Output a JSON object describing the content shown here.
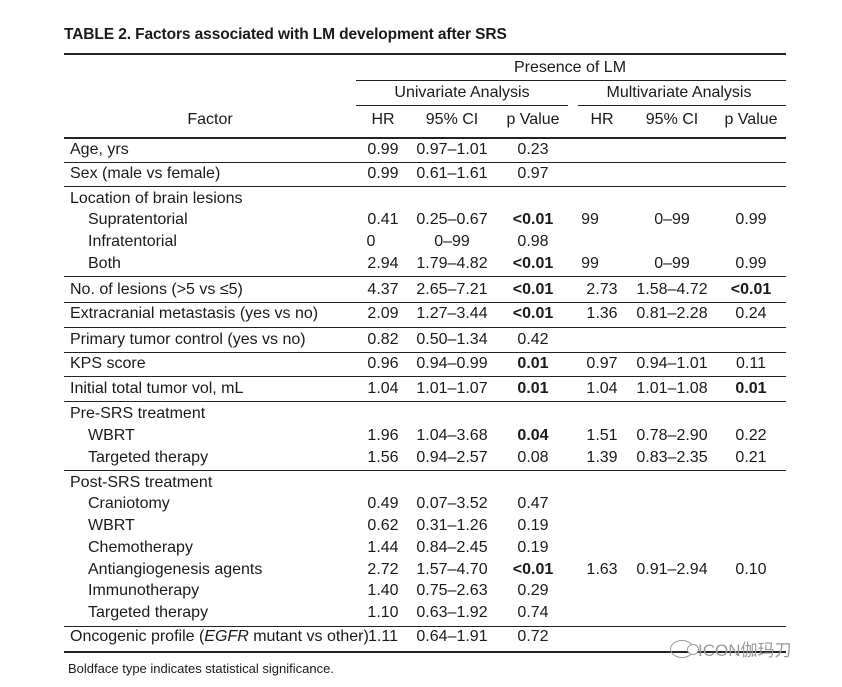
{
  "title": "TABLE 2. Factors associated with LM development after SRS",
  "header": {
    "presence": "Presence of LM",
    "univariate": "Univariate Analysis",
    "multivariate": "Multivariate Analysis",
    "factor": "Factor",
    "hr": "HR",
    "ci": "95% CI",
    "p": "p Value"
  },
  "rows": [
    {
      "factor": "Age, yrs",
      "u_hr": "0.99",
      "u_ci": "0.97–1.01",
      "u_p": "0.23",
      "m_hr": "",
      "m_ci": "",
      "m_p": ""
    },
    {
      "factor": "Sex (male vs female)",
      "u_hr": "0.99",
      "u_ci": "0.61–1.61",
      "u_p": "0.97",
      "m_hr": "",
      "m_ci": "",
      "m_p": ""
    },
    {
      "factor": "Location of brain lesions",
      "u_hr": "",
      "u_ci": "",
      "u_p": "",
      "m_hr": "",
      "m_ci": "",
      "m_p": ""
    },
    {
      "factor": "Supratentorial",
      "u_hr": "0.41",
      "u_ci": "0.25–0.67",
      "u_p": "<0.01",
      "m_hr": "99",
      "m_ci": "0–99",
      "m_p": "0.99"
    },
    {
      "factor": "Infratentorial",
      "u_hr": "0",
      "u_ci": "0–99",
      "u_p": "0.98",
      "m_hr": "",
      "m_ci": "",
      "m_p": ""
    },
    {
      "factor": "Both",
      "u_hr": "2.94",
      "u_ci": "1.79–4.82",
      "u_p": "<0.01",
      "m_hr": "99",
      "m_ci": "0–99",
      "m_p": "0.99"
    },
    {
      "factor": "No. of lesions (>5 vs ≤5)",
      "u_hr": "4.37",
      "u_ci": "2.65–7.21",
      "u_p": "<0.01",
      "m_hr": "2.73",
      "m_ci": "1.58–4.72",
      "m_p": "<0.01"
    },
    {
      "factor": "Extracranial metastasis (yes vs no)",
      "u_hr": "2.09",
      "u_ci": "1.27–3.44",
      "u_p": "<0.01",
      "m_hr": "1.36",
      "m_ci": "0.81–2.28",
      "m_p": "0.24"
    },
    {
      "factor": "Primary tumor control (yes vs no)",
      "u_hr": "0.82",
      "u_ci": "0.50–1.34",
      "u_p": "0.42",
      "m_hr": "",
      "m_ci": "",
      "m_p": ""
    },
    {
      "factor": "KPS score",
      "u_hr": "0.96",
      "u_ci": "0.94–0.99",
      "u_p": "0.01",
      "m_hr": "0.97",
      "m_ci": "0.94–1.01",
      "m_p": "0.11"
    },
    {
      "factor": "Initial total tumor vol, mL",
      "u_hr": "1.04",
      "u_ci": "1.01–1.07",
      "u_p": "0.01",
      "m_hr": "1.04",
      "m_ci": "1.01–1.08",
      "m_p": "0.01"
    },
    {
      "factor": "Pre-SRS treatment",
      "u_hr": "",
      "u_ci": "",
      "u_p": "",
      "m_hr": "",
      "m_ci": "",
      "m_p": ""
    },
    {
      "factor": "WBRT",
      "u_hr": "1.96",
      "u_ci": "1.04–3.68",
      "u_p": "0.04",
      "m_hr": "1.51",
      "m_ci": "0.78–2.90",
      "m_p": "0.22"
    },
    {
      "factor": "Targeted therapy",
      "u_hr": "1.56",
      "u_ci": "0.94–2.57",
      "u_p": "0.08",
      "m_hr": "1.39",
      "m_ci": "0.83–2.35",
      "m_p": "0.21"
    },
    {
      "factor": "Post-SRS treatment",
      "u_hr": "",
      "u_ci": "",
      "u_p": "",
      "m_hr": "",
      "m_ci": "",
      "m_p": ""
    },
    {
      "factor": "Craniotomy",
      "u_hr": "0.49",
      "u_ci": "0.07–3.52",
      "u_p": "0.47",
      "m_hr": "",
      "m_ci": "",
      "m_p": ""
    },
    {
      "factor": "WBRT",
      "u_hr": "0.62",
      "u_ci": "0.31–1.26",
      "u_p": "0.19",
      "m_hr": "",
      "m_ci": "",
      "m_p": ""
    },
    {
      "factor": "Chemotherapy",
      "u_hr": "1.44",
      "u_ci": "0.84–2.45",
      "u_p": "0.19",
      "m_hr": "",
      "m_ci": "",
      "m_p": ""
    },
    {
      "factor": "Antiangiogenesis agents",
      "u_hr": "2.72",
      "u_ci": "1.57–4.70",
      "u_p": "<0.01",
      "m_hr": "1.63",
      "m_ci": "0.91–2.94",
      "m_p": "0.10"
    },
    {
      "factor": "Immunotherapy",
      "u_hr": "1.40",
      "u_ci": "0.75–2.63",
      "u_p": "0.29",
      "m_hr": "",
      "m_ci": "",
      "m_p": ""
    },
    {
      "factor": "Targeted therapy",
      "u_hr": "1.10",
      "u_ci": "0.63–1.92",
      "u_p": "0.74",
      "m_hr": "",
      "m_ci": "",
      "m_p": ""
    },
    {
      "factor_pre": "Oncogenic profile (",
      "factor_em": "EGFR",
      "factor_post": " mutant vs other)",
      "u_hr": "1.11",
      "u_ci": "0.64–1.91",
      "u_p": "0.72",
      "m_hr": "",
      "m_ci": "",
      "m_p": ""
    }
  ],
  "footnote": "Boldface type indicates statistical significance.",
  "watermark": "ICON伽玛刀",
  "watermark_icon": "wechat-icon"
}
